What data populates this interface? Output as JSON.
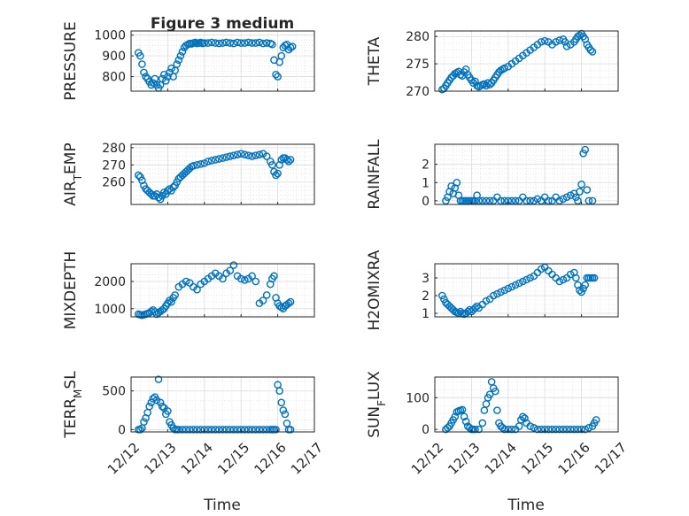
{
  "figure": {
    "title": "Figure 3 medium",
    "xlabel": "Time",
    "marker_color": "#0072BD",
    "x_ticks": [
      "12/12",
      "12/13",
      "12/14",
      "12/15",
      "12/16",
      "12/17"
    ]
  },
  "chart_data": [
    {
      "type": "scatter",
      "title": "Figure 3 medium",
      "ylabel": "PRESSURE",
      "ylim": [
        730,
        1020
      ],
      "y_ticks": [
        800,
        900,
        1000
      ],
      "xlim": [
        12,
        17
      ],
      "grid": true,
      "x": [
        12.2,
        12.25,
        12.3,
        12.35,
        12.4,
        12.45,
        12.5,
        12.55,
        12.6,
        12.65,
        12.7,
        12.75,
        12.8,
        12.85,
        12.9,
        12.95,
        13.0,
        13.05,
        13.1,
        13.15,
        13.2,
        13.25,
        13.3,
        13.35,
        13.4,
        13.45,
        13.5,
        13.55,
        13.6,
        13.65,
        13.7,
        13.75,
        13.8,
        13.85,
        13.9,
        13.95,
        14.0,
        14.1,
        14.2,
        14.3,
        14.4,
        14.5,
        14.6,
        14.7,
        14.8,
        14.9,
        15.0,
        15.1,
        15.2,
        15.3,
        15.4,
        15.5,
        15.6,
        15.7,
        15.8,
        15.85,
        15.9,
        15.95,
        16.0,
        16.05,
        16.1,
        16.15,
        16.2,
        16.25,
        16.3,
        16.35,
        16.4
      ],
      "y": [
        915,
        900,
        860,
        820,
        800,
        790,
        775,
        760,
        770,
        790,
        760,
        745,
        760,
        790,
        810,
        780,
        800,
        820,
        840,
        800,
        830,
        860,
        880,
        900,
        920,
        940,
        950,
        955,
        960,
        958,
        962,
        965,
        960,
        962,
        965,
        960,
        962,
        962,
        965,
        962,
        960,
        962,
        965,
        962,
        960,
        965,
        962,
        962,
        965,
        962,
        962,
        965,
        960,
        962,
        960,
        955,
        880,
        810,
        800,
        870,
        900,
        940,
        950,
        955,
        930,
        940,
        945
      ]
    },
    {
      "type": "scatter",
      "ylabel": "THETA",
      "ylim": [
        270,
        281
      ],
      "y_ticks": [
        270,
        275,
        280
      ],
      "xlim": [
        12,
        17
      ],
      "grid": true,
      "x": [
        12.2,
        12.25,
        12.3,
        12.35,
        12.4,
        12.45,
        12.5,
        12.55,
        12.6,
        12.65,
        12.7,
        12.75,
        12.8,
        12.85,
        12.9,
        12.95,
        13.0,
        13.05,
        13.1,
        13.15,
        13.2,
        13.25,
        13.3,
        13.35,
        13.4,
        13.45,
        13.5,
        13.55,
        13.6,
        13.65,
        13.7,
        13.75,
        13.8,
        13.85,
        13.9,
        14.0,
        14.1,
        14.2,
        14.3,
        14.4,
        14.5,
        14.6,
        14.7,
        14.8,
        14.9,
        15.0,
        15.1,
        15.2,
        15.3,
        15.4,
        15.5,
        15.55,
        15.6,
        15.7,
        15.8,
        15.85,
        15.9,
        15.95,
        16.0,
        16.05,
        16.1,
        16.15,
        16.2,
        16.25,
        16.3
      ],
      "y": [
        270.3,
        270.5,
        271,
        271.5,
        272,
        272.5,
        272.8,
        273.2,
        273.4,
        273.6,
        273,
        272.8,
        273.5,
        274,
        273,
        272.5,
        272,
        271.5,
        271.8,
        271,
        270.8,
        271,
        271.2,
        271.3,
        271,
        271.5,
        271.2,
        271.5,
        272,
        272.5,
        273,
        273.5,
        273.8,
        274,
        274.2,
        274.5,
        275,
        275.5,
        276,
        276.5,
        277,
        277.5,
        278,
        278.5,
        279,
        279.2,
        279,
        278.5,
        279,
        279.3,
        279.5,
        279,
        278.2,
        278.5,
        279,
        279.5,
        280,
        280.2,
        280.5,
        280,
        279.5,
        278.5,
        278,
        277.5,
        277.2
      ]
    },
    {
      "type": "scatter",
      "ylabel": "AIR_TEMP",
      "ylim": [
        247,
        282
      ],
      "y_ticks": [
        260,
        270,
        280
      ],
      "xlim": [
        12,
        17
      ],
      "grid": true,
      "x": [
        12.2,
        12.25,
        12.3,
        12.35,
        12.4,
        12.45,
        12.5,
        12.55,
        12.6,
        12.65,
        12.7,
        12.75,
        12.8,
        12.85,
        12.9,
        12.95,
        13.0,
        13.05,
        13.1,
        13.15,
        13.2,
        13.25,
        13.3,
        13.35,
        13.4,
        13.45,
        13.5,
        13.55,
        13.6,
        13.65,
        13.7,
        13.8,
        13.9,
        14.0,
        14.1,
        14.2,
        14.3,
        14.4,
        14.5,
        14.6,
        14.7,
        14.8,
        14.9,
        15.0,
        15.1,
        15.2,
        15.3,
        15.4,
        15.5,
        15.6,
        15.7,
        15.8,
        15.85,
        15.9,
        15.95,
        16.0,
        16.05,
        16.1,
        16.15,
        16.2,
        16.25,
        16.3,
        16.35
      ],
      "y": [
        264,
        263,
        261,
        258,
        256,
        255,
        254,
        253,
        252,
        252,
        253,
        251,
        250,
        252,
        254,
        253,
        255,
        256,
        255,
        257,
        258,
        260,
        262,
        263,
        264,
        265,
        266,
        267,
        268,
        269,
        269.5,
        270,
        270.5,
        271,
        272,
        272.5,
        273,
        273.5,
        274,
        274.5,
        275,
        275.5,
        276,
        276.5,
        276,
        275.5,
        275,
        275.5,
        276,
        276.5,
        275,
        272,
        270,
        266,
        264,
        265,
        270,
        273,
        274,
        274,
        273,
        272,
        273
      ]
    },
    {
      "type": "scatter",
      "ylabel": "RAINFALL",
      "ylim": [
        -0.2,
        3.1
      ],
      "y_ticks": [
        0,
        1,
        2
      ],
      "xlim": [
        12,
        17
      ],
      "grid": true,
      "x": [
        12.3,
        12.35,
        12.4,
        12.45,
        12.5,
        12.55,
        12.6,
        12.65,
        12.7,
        12.75,
        12.8,
        12.85,
        12.9,
        12.95,
        13.0,
        13.05,
        13.1,
        13.15,
        13.2,
        13.3,
        13.4,
        13.5,
        13.6,
        13.7,
        13.8,
        13.9,
        14.0,
        14.1,
        14.2,
        14.3,
        14.4,
        14.5,
        14.6,
        14.7,
        14.8,
        14.9,
        15.0,
        15.1,
        15.2,
        15.3,
        15.4,
        15.5,
        15.6,
        15.7,
        15.8,
        15.85,
        15.9,
        15.95,
        16.0,
        16.05,
        16.1,
        16.15,
        16.2,
        16.3
      ],
      "y": [
        0,
        0.2,
        0.5,
        0.8,
        0.4,
        0.7,
        1.0,
        0.3,
        0,
        0,
        0,
        0,
        0,
        0,
        0,
        0,
        0,
        0.3,
        0,
        0,
        0,
        0,
        0,
        0.2,
        0,
        0,
        0,
        0,
        0,
        0,
        0.2,
        0,
        0,
        0,
        0.1,
        0,
        0.2,
        0,
        0,
        0.2,
        0,
        0.1,
        0.2,
        0.3,
        0.4,
        0.2,
        0,
        0.5,
        0.9,
        2.6,
        2.8,
        0.6,
        0,
        0
      ]
    },
    {
      "type": "scatter",
      "ylabel": "MIXDEPTH",
      "ylim": [
        700,
        2650
      ],
      "y_ticks": [
        1000,
        2000
      ],
      "xlim": [
        12,
        17
      ],
      "grid": true,
      "x": [
        12.2,
        12.25,
        12.3,
        12.35,
        12.4,
        12.45,
        12.5,
        12.55,
        12.6,
        12.65,
        12.7,
        12.75,
        12.8,
        12.85,
        12.9,
        12.95,
        13.0,
        13.05,
        13.1,
        13.15,
        13.2,
        13.3,
        13.4,
        13.5,
        13.6,
        13.7,
        13.8,
        13.9,
        14.0,
        14.1,
        14.2,
        14.3,
        14.4,
        14.5,
        14.6,
        14.7,
        14.8,
        14.9,
        15.0,
        15.1,
        15.2,
        15.3,
        15.4,
        15.5,
        15.6,
        15.7,
        15.8,
        15.85,
        15.9,
        15.95,
        16.0,
        16.05,
        16.1,
        16.15,
        16.2,
        16.25,
        16.3,
        16.35
      ],
      "y": [
        800,
        780,
        760,
        780,
        800,
        820,
        850,
        900,
        950,
        880,
        800,
        850,
        900,
        950,
        1000,
        1100,
        1200,
        1300,
        1250,
        1400,
        1500,
        1800,
        1900,
        2000,
        1950,
        1800,
        1700,
        1900,
        2000,
        2100,
        2200,
        2300,
        2200,
        2100,
        2300,
        2400,
        2600,
        2200,
        2100,
        2050,
        2100,
        2200,
        2000,
        1200,
        1300,
        1500,
        1900,
        2100,
        2200,
        1400,
        1200,
        1100,
        1050,
        1000,
        1100,
        1150,
        1200,
        1250
      ]
    },
    {
      "type": "scatter",
      "ylabel": "H2OMIXRA",
      "ylim": [
        0.8,
        3.8
      ],
      "y_ticks": [
        1,
        2,
        3
      ],
      "xlim": [
        12,
        17
      ],
      "grid": true,
      "x": [
        12.2,
        12.25,
        12.3,
        12.35,
        12.4,
        12.45,
        12.5,
        12.55,
        12.6,
        12.65,
        12.7,
        12.75,
        12.8,
        12.85,
        12.9,
        12.95,
        13.0,
        13.05,
        13.1,
        13.15,
        13.2,
        13.3,
        13.4,
        13.5,
        13.6,
        13.7,
        13.8,
        13.9,
        14.0,
        14.1,
        14.2,
        14.3,
        14.4,
        14.5,
        14.6,
        14.7,
        14.8,
        14.9,
        15.0,
        15.1,
        15.2,
        15.3,
        15.4,
        15.5,
        15.6,
        15.7,
        15.8,
        15.85,
        15.9,
        15.95,
        16.0,
        16.05,
        16.1,
        16.15,
        16.2,
        16.25,
        16.3,
        16.35
      ],
      "y": [
        2.0,
        1.8,
        1.6,
        1.5,
        1.4,
        1.3,
        1.2,
        1.1,
        1.05,
        1.0,
        1.1,
        1.0,
        0.95,
        1.0,
        1.1,
        1.2,
        1.1,
        1.2,
        1.3,
        1.4,
        1.3,
        1.5,
        1.7,
        1.8,
        2.0,
        2.1,
        2.2,
        2.3,
        2.4,
        2.5,
        2.6,
        2.7,
        2.8,
        2.9,
        3.0,
        3.1,
        3.3,
        3.5,
        3.6,
        3.4,
        3.2,
        3.0,
        2.8,
        2.9,
        3.0,
        3.2,
        3.3,
        3.0,
        2.6,
        2.3,
        2.2,
        2.4,
        2.6,
        3.0,
        3.0,
        3.0,
        3.0,
        3.0
      ]
    },
    {
      "type": "scatter",
      "ylabel": "TERR_MSL",
      "ylim": [
        -30,
        680
      ],
      "y_ticks": [
        0,
        500
      ],
      "xlim": [
        12,
        17
      ],
      "grid": true,
      "x": [
        12.2,
        12.25,
        12.3,
        12.35,
        12.4,
        12.45,
        12.5,
        12.55,
        12.6,
        12.65,
        12.7,
        12.75,
        12.8,
        12.85,
        12.9,
        12.95,
        13.0,
        13.05,
        13.1,
        13.15,
        13.2,
        13.25,
        13.3,
        13.4,
        13.5,
        13.6,
        13.7,
        13.8,
        13.9,
        14.0,
        14.1,
        14.2,
        14.3,
        14.4,
        14.5,
        14.6,
        14.7,
        14.8,
        14.9,
        15.0,
        15.1,
        15.2,
        15.3,
        15.4,
        15.5,
        15.6,
        15.7,
        15.8,
        15.85,
        15.9,
        15.95,
        16.0,
        16.05,
        16.1,
        16.15,
        16.2,
        16.25,
        16.3,
        16.35
      ],
      "y": [
        0,
        0,
        20,
        100,
        150,
        220,
        300,
        350,
        400,
        420,
        380,
        650,
        350,
        300,
        280,
        200,
        240,
        100,
        60,
        20,
        0,
        0,
        0,
        0,
        0,
        0,
        0,
        0,
        0,
        0,
        0,
        0,
        0,
        0,
        0,
        0,
        0,
        0,
        0,
        0,
        0,
        0,
        0,
        0,
        0,
        0,
        0,
        0,
        0,
        0,
        0,
        580,
        500,
        350,
        250,
        200,
        80,
        0,
        0
      ]
    },
    {
      "type": "scatter",
      "ylabel": "SUN_FLUX",
      "ylim": [
        -8,
        165
      ],
      "y_ticks": [
        0,
        100
      ],
      "xlim": [
        12,
        17
      ],
      "grid": true,
      "x": [
        12.3,
        12.35,
        12.4,
        12.45,
        12.5,
        12.55,
        12.6,
        12.65,
        12.7,
        12.75,
        12.8,
        12.85,
        12.9,
        12.95,
        13.0,
        13.05,
        13.1,
        13.2,
        13.3,
        13.35,
        13.4,
        13.45,
        13.5,
        13.55,
        13.6,
        13.65,
        13.7,
        13.75,
        13.8,
        13.85,
        13.9,
        14.0,
        14.1,
        14.2,
        14.3,
        14.35,
        14.4,
        14.45,
        14.5,
        14.6,
        14.7,
        14.8,
        14.9,
        15.0,
        15.1,
        15.2,
        15.3,
        15.4,
        15.5,
        15.6,
        15.7,
        15.8,
        15.9,
        16.0,
        16.1,
        16.2,
        16.3,
        16.35,
        16.4
      ],
      "y": [
        0,
        5,
        10,
        20,
        30,
        40,
        55,
        58,
        60,
        62,
        40,
        25,
        10,
        5,
        0,
        0,
        0,
        0,
        20,
        60,
        80,
        100,
        110,
        150,
        130,
        120,
        60,
        20,
        10,
        5,
        0,
        0,
        0,
        0,
        10,
        30,
        40,
        35,
        20,
        10,
        5,
        0,
        0,
        0,
        0,
        0,
        0,
        0,
        0,
        0,
        0,
        0,
        0,
        0,
        0,
        5,
        10,
        20,
        30
      ]
    }
  ]
}
